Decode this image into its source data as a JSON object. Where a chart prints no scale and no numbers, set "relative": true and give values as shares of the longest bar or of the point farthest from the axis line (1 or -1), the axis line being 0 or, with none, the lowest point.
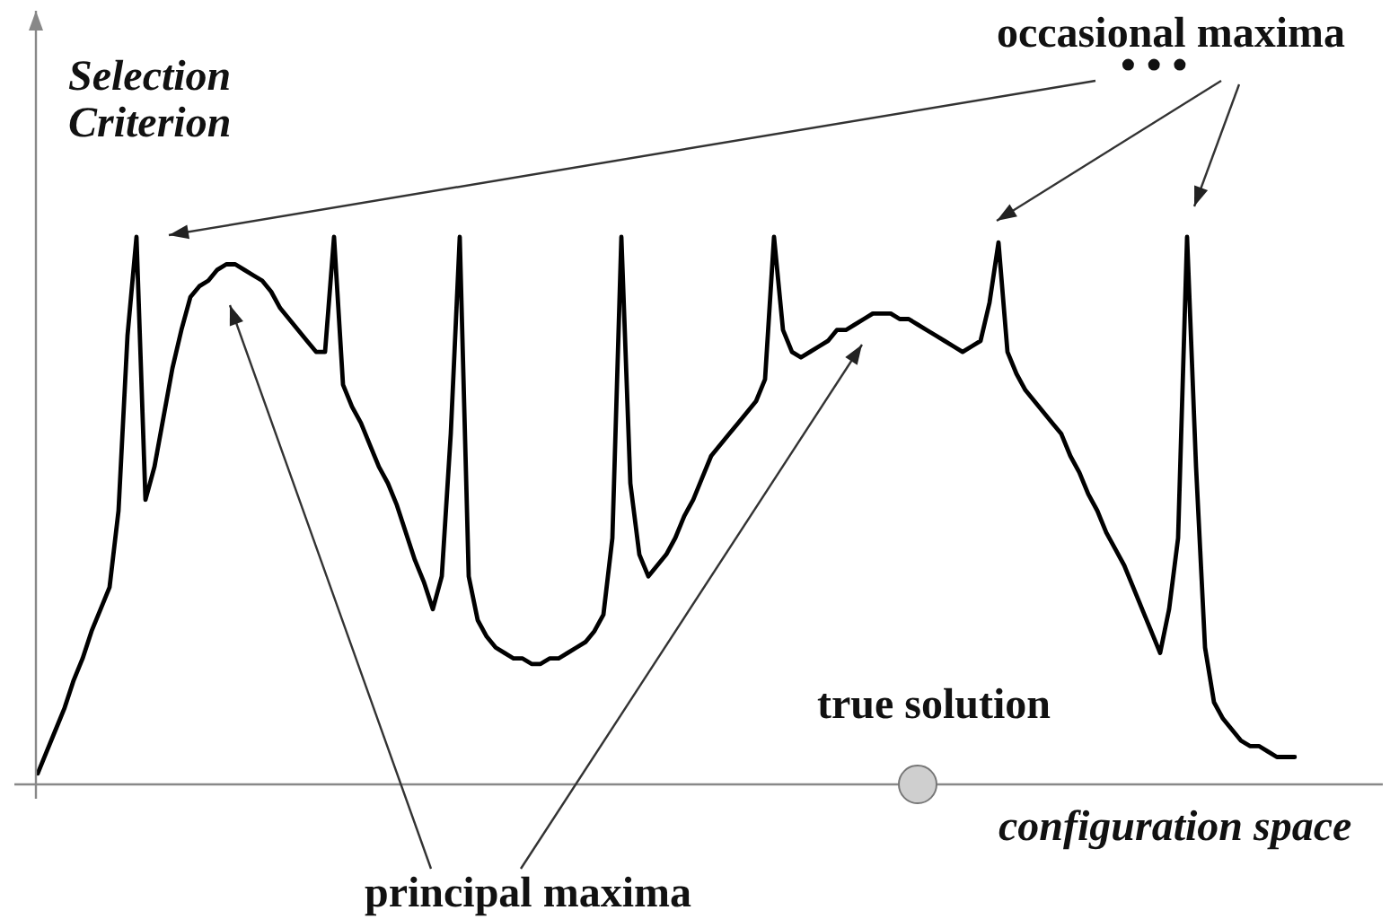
{
  "chart_data": {
    "type": "line",
    "xlabel": "configuration space",
    "ylabel": "Selection Criterion",
    "annotations": [
      "occasional maxima",
      "• • •",
      "principal maxima",
      "true solution"
    ],
    "relative": true,
    "color": "#000000",
    "categories": [
      null,
      null,
      null,
      null,
      null,
      null,
      null,
      null,
      null,
      null,
      null,
      null,
      null,
      null,
      null,
      null,
      null,
      null,
      null,
      null,
      null,
      null,
      null,
      null,
      null,
      null,
      null,
      null,
      null,
      null,
      null,
      null,
      null,
      null,
      null,
      null,
      null,
      null,
      null,
      null,
      null,
      null,
      null,
      null,
      null,
      null,
      null,
      null,
      null,
      null,
      null,
      null,
      null,
      null,
      null,
      null,
      null,
      null,
      null,
      null,
      null,
      null,
      null,
      null,
      null,
      null,
      null,
      null,
      null,
      null,
      null,
      null,
      null,
      null,
      null,
      null,
      null,
      null,
      null,
      null,
      null,
      null,
      null,
      null,
      null,
      null,
      null,
      null,
      null,
      null,
      null,
      null,
      null,
      null,
      null,
      null,
      null,
      null,
      null,
      null,
      null,
      null,
      null,
      null,
      null,
      null,
      null,
      null,
      null,
      null,
      null,
      null,
      null,
      null,
      null,
      null,
      null,
      null,
      null,
      null,
      null,
      null,
      null,
      null,
      null,
      null,
      null,
      null,
      null,
      null,
      null,
      null,
      null,
      null,
      null,
      null,
      null,
      null,
      null,
      null,
      null
    ],
    "values": [
      0.02,
      0.06,
      0.1,
      0.14,
      0.19,
      0.23,
      0.28,
      0.32,
      0.36,
      0.5,
      0.82,
      1.0,
      0.52,
      0.58,
      0.67,
      0.76,
      0.83,
      0.89,
      0.91,
      0.92,
      0.94,
      0.95,
      0.95,
      0.94,
      0.93,
      0.92,
      0.9,
      0.87,
      0.85,
      0.83,
      0.81,
      0.79,
      0.79,
      1.0,
      0.73,
      0.69,
      0.66,
      0.62,
      0.58,
      0.55,
      0.51,
      0.46,
      0.41,
      0.37,
      0.32,
      0.38,
      0.64,
      1.0,
      0.38,
      0.3,
      0.27,
      0.25,
      0.24,
      0.23,
      0.23,
      0.22,
      0.22,
      0.23,
      0.23,
      0.24,
      0.25,
      0.26,
      0.28,
      0.31,
      0.45,
      1.0,
      0.55,
      0.42,
      0.38,
      0.4,
      0.42,
      0.45,
      0.49,
      0.52,
      0.56,
      0.6,
      0.62,
      0.64,
      0.66,
      0.68,
      0.7,
      0.74,
      1.0,
      0.83,
      0.79,
      0.78,
      0.79,
      0.8,
      0.81,
      0.83,
      0.83,
      0.84,
      0.85,
      0.86,
      0.86,
      0.86,
      0.85,
      0.85,
      0.84,
      0.83,
      0.82,
      0.81,
      0.8,
      0.79,
      0.8,
      0.81,
      0.88,
      0.99,
      0.79,
      0.75,
      0.72,
      0.7,
      0.68,
      0.66,
      0.64,
      0.6,
      0.57,
      0.53,
      0.5,
      0.46,
      0.43,
      0.4,
      0.36,
      0.32,
      0.28,
      0.24,
      0.32,
      0.45,
      1.0,
      0.58,
      0.25,
      0.15,
      0.12,
      0.1,
      0.08,
      0.07,
      0.07,
      0.06,
      0.05,
      0.05,
      0.05
    ]
  }
}
